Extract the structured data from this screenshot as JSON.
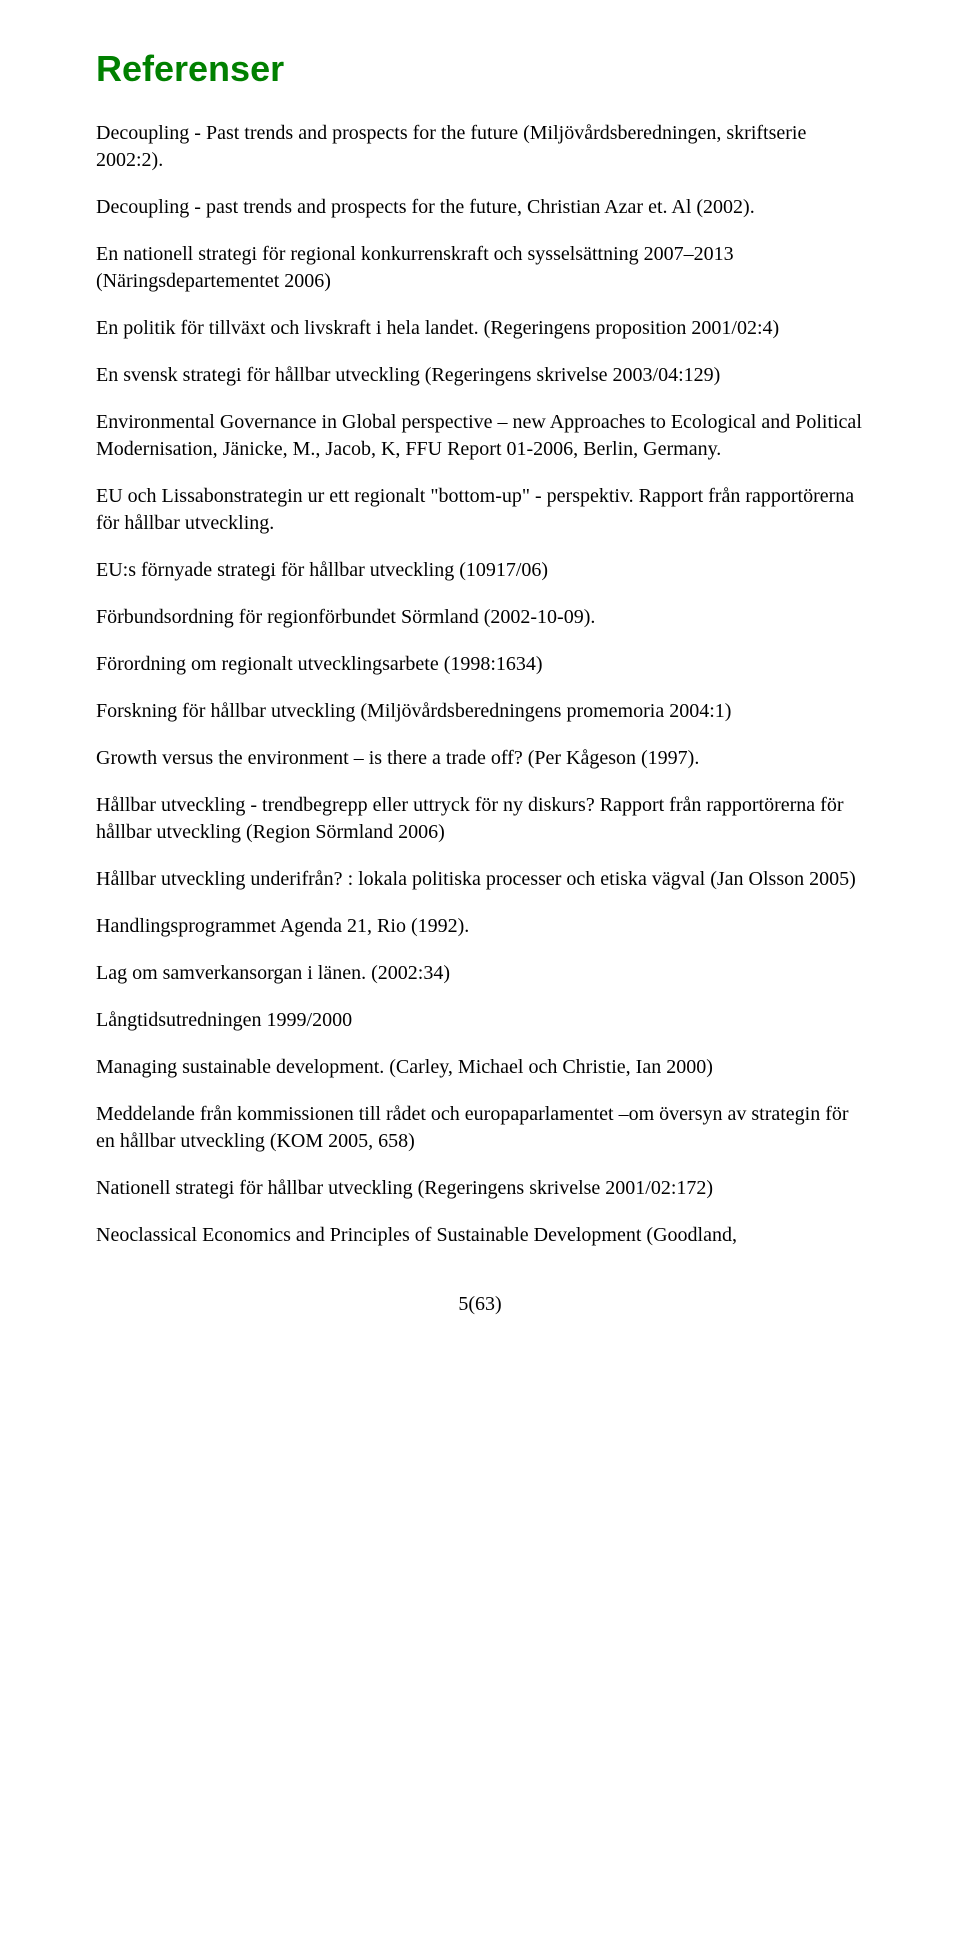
{
  "heading": "Referenser",
  "paragraphs": [
    "Decoupling - Past trends and prospects for the future (Miljövårdsberedningen, skriftserie 2002:2).",
    "Decoupling - past trends and prospects for the future, Christian Azar et. Al (2002).",
    "En nationell strategi för regional konkurrenskraft och sysselsättning 2007–2013 (Näringsdepartementet 2006)",
    "En politik för tillväxt och livskraft i hela landet. (Regeringens proposition 2001/02:4)",
    "En svensk strategi för hållbar utveckling (Regeringens skrivelse 2003/04:129)",
    "Environmental Governance in Global perspective – new Approaches to Ecological and Political Modernisation, Jänicke, M., Jacob, K, FFU Report 01-2006, Berlin, Germany.",
    "EU och Lissabonstrategin ur ett regionalt \"bottom-up\" - perspektiv. Rapport från rapportörerna för hållbar utveckling.",
    "EU:s förnyade strategi för hållbar utveckling (10917/06)",
    "Förbundsordning för regionförbundet Sörmland (2002-10-09).",
    "Förordning om regionalt utvecklingsarbete (1998:1634)",
    "Forskning för hållbar utveckling (Miljövårdsberedningens promemoria 2004:1)",
    "Growth versus the environment – is there a trade off? (Per Kågeson (1997).",
    "Hållbar utveckling - trendbegrepp eller uttryck för ny diskurs? Rapport från rapportörerna för hållbar utveckling (Region Sörmland 2006)",
    "Hållbar utveckling underifrån? : lokala politiska processer och etiska vägval (Jan Olsson 2005)",
    "Handlingsprogrammet Agenda 21, Rio (1992).",
    "Lag om samverkansorgan i länen. (2002:34)",
    "Långtidsutredningen 1999/2000",
    "Managing sustainable development. (Carley, Michael och Christie, Ian 2000)",
    "Meddelande från kommissionen till rådet och europaparlamentet –om översyn av strategin för en hållbar utveckling (KOM 2005, 658)",
    "Nationell strategi för hållbar utveckling (Regeringens skrivelse 2001/02:172)",
    "Neoclassical Economics and Principles of Sustainable Development (Goodland,"
  ],
  "footer": "5(63)"
}
